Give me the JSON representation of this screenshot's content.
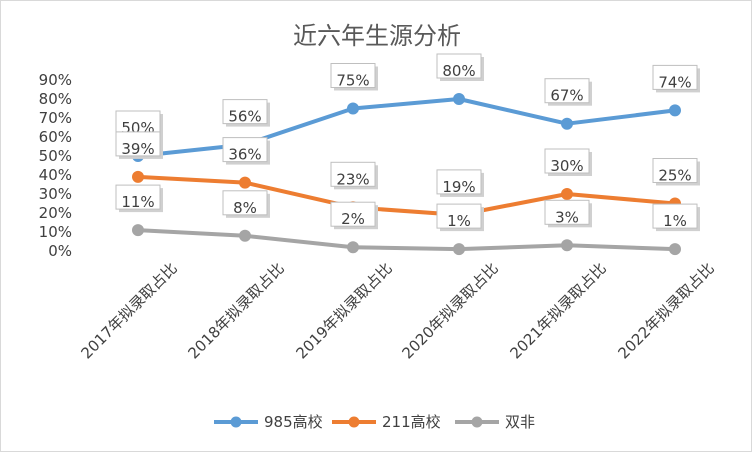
{
  "chart_data": {
    "type": "line",
    "title": "近六年生源分析",
    "categories": [
      "2017年拟录取占比",
      "2018年拟录取占比",
      "2019年拟录取占比",
      "2020年拟录取占比",
      "2021年拟录取占比",
      "2022年拟录取占比"
    ],
    "series": [
      {
        "name": "985高校",
        "values": [
          50,
          56,
          75,
          80,
          67,
          74
        ],
        "color": "#5b9bd5"
      },
      {
        "name": "211高校",
        "values": [
          39,
          36,
          23,
          19,
          30,
          25
        ],
        "color": "#ed7d31"
      },
      {
        "name": "双非",
        "values": [
          11,
          8,
          2,
          1,
          3,
          1
        ],
        "color": "#a5a5a5"
      }
    ],
    "data_labels": {
      "985高校": [
        "50%",
        "56%",
        "75%",
        "80%",
        "67%",
        "74%"
      ],
      "211高校": [
        "39%",
        "36%",
        "23%",
        "19%",
        "30%",
        "25%"
      ],
      "双非": [
        "11%",
        "8%",
        "2%",
        "1%",
        "3%",
        "1%"
      ]
    },
    "yticks": [
      "0%",
      "10%",
      "20%",
      "30%",
      "40%",
      "50%",
      "60%",
      "70%",
      "80%",
      "90%"
    ],
    "ylim": [
      0,
      90
    ],
    "legend_position": "bottom",
    "grid": false
  }
}
